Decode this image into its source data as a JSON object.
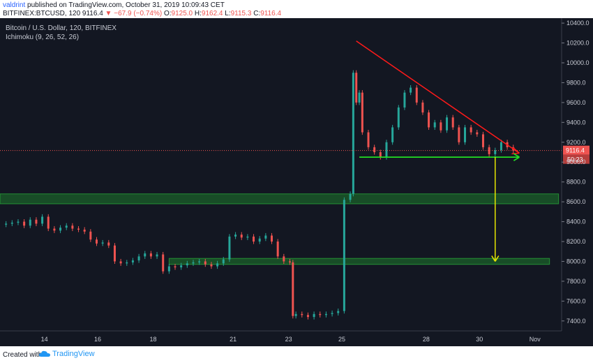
{
  "header": {
    "author": "valdrint",
    "published": "published on TradingView.com, October 31, 2019 10:09:43 CET",
    "symbol_line": {
      "symbol": "BITFINEX:BTCUSD, 120",
      "last": "9116.4",
      "change_arrow": "▼",
      "change": "−67.9 (−0.74%)",
      "o_label": "O:",
      "o": "9125.0",
      "h_label": "H:",
      "h": "9162.4",
      "l_label": "L:",
      "l": "9115.3",
      "c_label": "C:",
      "c": "9116.4"
    }
  },
  "legend": {
    "title": "Bitcoin / U.S. Dollar, 120, BITFINEX",
    "indicator": "Ichimoku (9, 26, 52, 26)"
  },
  "footer": {
    "created_with": "Created with",
    "brand": "TradingView"
  },
  "colors": {
    "background": "#131722",
    "up": "#26a69a",
    "down": "#ef5350",
    "trendline": "#ff1a1a",
    "support_line": "#22dd22",
    "target_arrow": "#e6e600",
    "zone_fill": "#1e7a2c",
    "price_badge": "#ef5350"
  },
  "chart_data": {
    "type": "candlestick",
    "title": "Bitcoin / U.S. Dollar, 120, BITFINEX",
    "xlabel": "",
    "ylabel": "",
    "ylim": [
      7300,
      10450
    ],
    "grid": false,
    "x_ticks": [
      "14",
      "16",
      "18",
      "21",
      "23",
      "25",
      "28",
      "30",
      "Nov"
    ],
    "y_ticks": [
      "10400.0",
      "10200.0",
      "10000.0",
      "9800.0",
      "9600.0",
      "9400.0",
      "9200.0",
      "9000.0",
      "8800.0",
      "8600.0",
      "8400.0",
      "8200.0",
      "8000.0",
      "7800.0",
      "7600.0",
      "7400.0"
    ],
    "current_price": {
      "value": 9116.4,
      "label": "9116.4",
      "countdown": "50:23"
    },
    "price_path": [
      [
        0,
        8370
      ],
      [
        2,
        8380
      ],
      [
        4,
        8390
      ],
      [
        6,
        8400
      ],
      [
        8,
        8360
      ],
      [
        10,
        8420
      ],
      [
        12,
        8380
      ],
      [
        14,
        8450
      ],
      [
        16,
        8330
      ],
      [
        18,
        8310
      ],
      [
        20,
        8340
      ],
      [
        22,
        8360
      ],
      [
        24,
        8330
      ],
      [
        26,
        8320
      ],
      [
        28,
        8300
      ],
      [
        30,
        8220
      ],
      [
        32,
        8180
      ],
      [
        34,
        8190
      ],
      [
        36,
        8160
      ],
      [
        38,
        8000
      ],
      [
        40,
        7980
      ],
      [
        42,
        7990
      ],
      [
        44,
        8010
      ],
      [
        46,
        8050
      ],
      [
        48,
        8080
      ],
      [
        50,
        8050
      ],
      [
        52,
        8070
      ],
      [
        54,
        7900
      ],
      [
        56,
        7950
      ],
      [
        58,
        7940
      ],
      [
        60,
        7960
      ],
      [
        62,
        7980
      ],
      [
        64,
        7990
      ],
      [
        66,
        8000
      ],
      [
        68,
        7970
      ],
      [
        70,
        7950
      ],
      [
        72,
        7980
      ],
      [
        74,
        8020
      ],
      [
        76,
        8250
      ],
      [
        78,
        8270
      ],
      [
        80,
        8240
      ],
      [
        82,
        8250
      ],
      [
        84,
        8200
      ],
      [
        86,
        8230
      ],
      [
        88,
        8260
      ],
      [
        90,
        8200
      ],
      [
        92,
        8050
      ],
      [
        94,
        8000
      ],
      [
        96,
        7990
      ],
      [
        97,
        7450
      ],
      [
        98,
        7470
      ],
      [
        100,
        7460
      ],
      [
        102,
        7440
      ],
      [
        104,
        7470
      ],
      [
        106,
        7460
      ],
      [
        108,
        7470
      ],
      [
        110,
        7480
      ],
      [
        112,
        7500
      ],
      [
        114,
        8620
      ],
      [
        116,
        8680
      ],
      [
        117,
        9900
      ],
      [
        118,
        9600
      ],
      [
        119,
        9700
      ],
      [
        120,
        9300
      ],
      [
        122,
        9150
      ],
      [
        124,
        9100
      ],
      [
        126,
        9050
      ],
      [
        128,
        9200
      ],
      [
        130,
        9350
      ],
      [
        132,
        9550
      ],
      [
        134,
        9700
      ],
      [
        136,
        9750
      ],
      [
        138,
        9600
      ],
      [
        140,
        9500
      ],
      [
        142,
        9350
      ],
      [
        144,
        9400
      ],
      [
        146,
        9320
      ],
      [
        148,
        9450
      ],
      [
        150,
        9350
      ],
      [
        152,
        9200
      ],
      [
        154,
        9350
      ],
      [
        156,
        9300
      ],
      [
        158,
        9280
      ],
      [
        160,
        9150
      ],
      [
        162,
        9080
      ],
      [
        164,
        9120
      ],
      [
        166,
        9200
      ],
      [
        168,
        9150
      ],
      [
        170,
        9116
      ]
    ],
    "annotations": [
      {
        "name": "descending-trendline",
        "from": [
          118,
          10220
        ],
        "to": [
          172,
          9090
        ]
      },
      {
        "name": "horizontal-support",
        "from": [
          119,
          9050
        ],
        "to": [
          172,
          9050
        ],
        "value": 9050
      },
      {
        "name": "target-arrow",
        "from": [
          164,
          9050
        ],
        "to": [
          164,
          8000
        ],
        "value": 8000
      },
      {
        "name": "resistance-zone",
        "from": [
          0,
          8680
        ],
        "to": [
          185,
          8580
        ]
      },
      {
        "name": "support-zone",
        "from": [
          56,
          8030
        ],
        "to": [
          182,
          7970
        ]
      }
    ]
  }
}
